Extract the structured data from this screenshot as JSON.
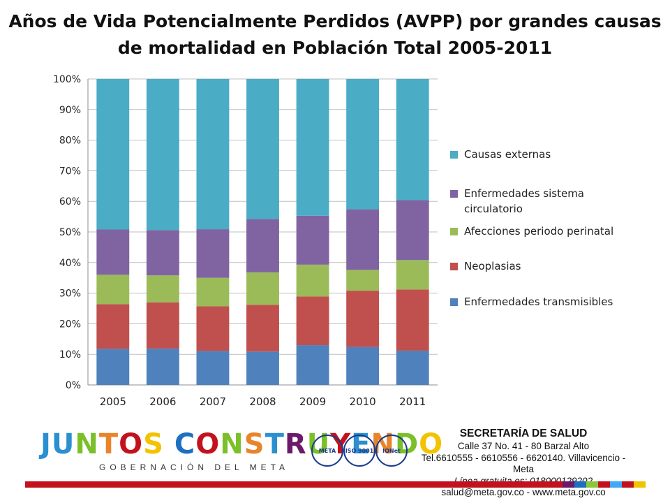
{
  "title_line1": "Años de Vida Potencialmente Perdidos (AVPP) por grandes causas",
  "title_line2": "de mortalidad en Población Total 2005-2011",
  "chart_data": {
    "type": "bar",
    "stacked": true,
    "percent": true,
    "categories": [
      "2005",
      "2006",
      "2007",
      "2008",
      "2009",
      "2010",
      "2011"
    ],
    "series": [
      {
        "name": "Enfermedades transmisibles",
        "color": "#4f81bd",
        "values": [
          11.8,
          11.9,
          11.1,
          10.9,
          13.0,
          12.4,
          11.2
        ]
      },
      {
        "name": "Neoplasias",
        "color": "#c0504d",
        "values": [
          14.6,
          15.1,
          14.6,
          15.3,
          15.9,
          18.4,
          20.0
        ]
      },
      {
        "name": "Afecciones periodo perinatal",
        "color": "#9bbb59",
        "values": [
          9.6,
          8.8,
          9.3,
          10.6,
          10.4,
          6.8,
          9.6
        ]
      },
      {
        "name": "Enfermedades sistema circulatorio",
        "color": "#8064a2",
        "values": [
          14.8,
          14.8,
          15.9,
          17.4,
          16.0,
          19.8,
          19.6
        ]
      },
      {
        "name": "Causas externas",
        "color": "#4bacc6",
        "values": [
          49.2,
          49.4,
          49.1,
          45.8,
          44.7,
          42.6,
          39.6
        ]
      }
    ],
    "legend_order": [
      "Causas externas",
      "Enfermedades sistema circulatorio",
      "Afecciones periodo perinatal",
      "Neoplasias",
      "Enfermedades transmisibles"
    ],
    "yticks": [
      "0%",
      "10%",
      "20%",
      "30%",
      "40%",
      "50%",
      "60%",
      "70%",
      "80%",
      "90%",
      "100%"
    ],
    "ylim": [
      0,
      100
    ],
    "grid": true,
    "legend_position": "right"
  },
  "footer": {
    "logo_text": "JUNTOS CONSTRUYENDO",
    "logo_subtitle": "GOBERNACIÓN DEL META",
    "secretaria_title": "SECRETARÍA DE SALUD",
    "address": "Calle 37 No. 41 - 80 Barzal Alto",
    "phones": "Tel.6610555 - 6610556 - 6620140. Villavicencio - Meta",
    "free_line": "Línea gratuita es: 018000129202",
    "contact": "salud@meta.gov.co - www.meta.gov.co",
    "seal1": "META",
    "seal2": "ISO 9001",
    "seal3": "IQNet",
    "colors": {
      "red": "#c3121e",
      "stripes": [
        "#6b1a6b",
        "#1e6fbf",
        "#8cc63f",
        "#c3121e",
        "#3fa9f5",
        "#c3121e",
        "#f3c200"
      ]
    }
  }
}
